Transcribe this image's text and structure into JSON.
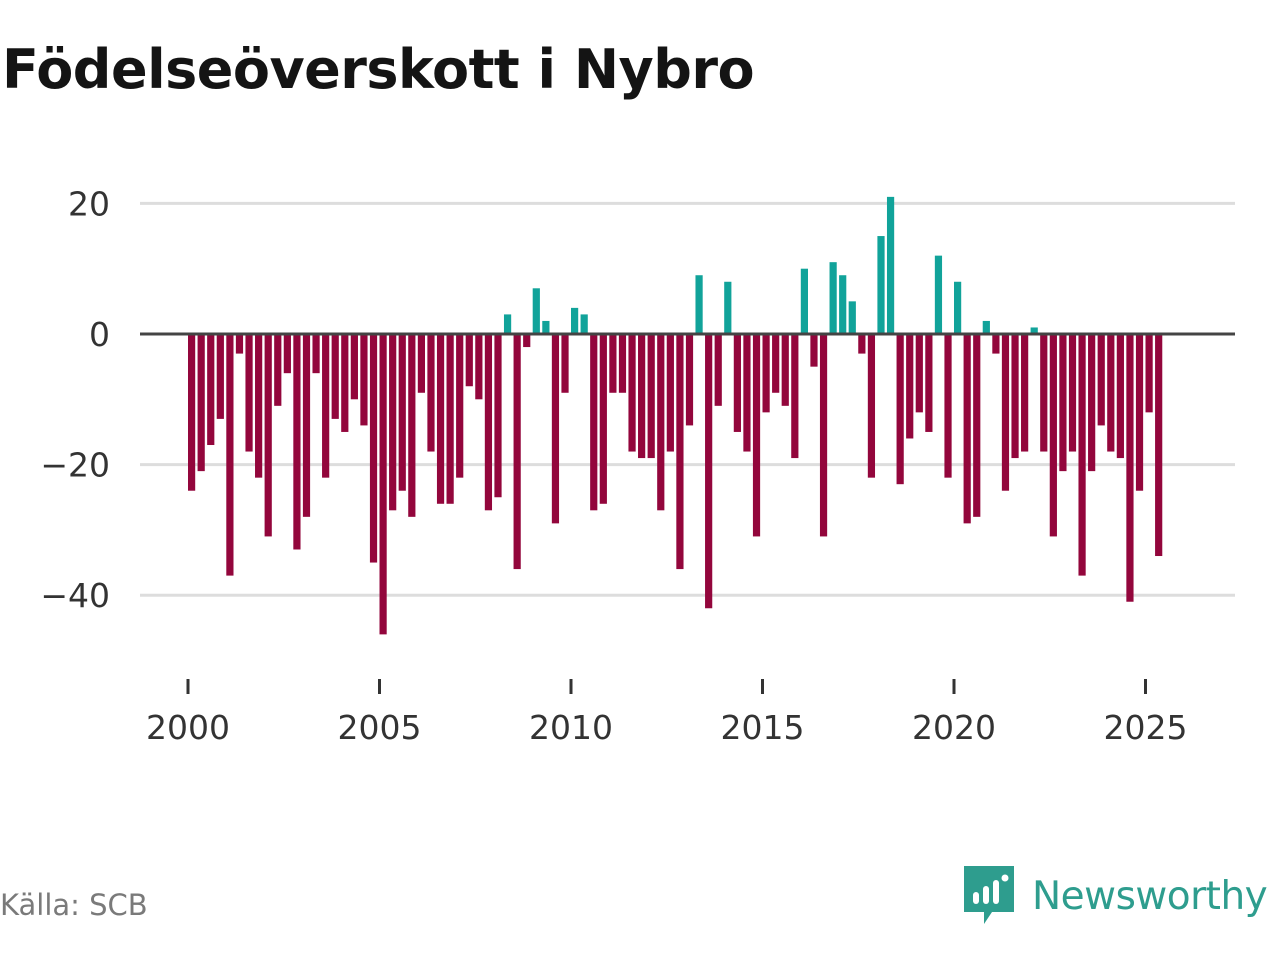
{
  "title": "Födelseöverskott i Nybro",
  "source": "Källa: SCB",
  "brand": {
    "name": "Newsworthy",
    "icon": "newsworthy-logo-icon",
    "color": "#2e9d8e"
  },
  "colors": {
    "positive": "#11a39a",
    "negative": "#93063c",
    "grid": "#dddddd",
    "zero": "#444444"
  },
  "chart_data": {
    "type": "bar",
    "title": "Födelseöverskott i Nybro",
    "xlabel": "",
    "ylabel": "",
    "frequency": "monthly",
    "x_ticks": [
      "2000",
      "2005",
      "2010",
      "2015",
      "2020",
      "2025"
    ],
    "y_ticks": [
      20,
      0,
      -20,
      -40
    ],
    "y_tick_labels": [
      "20",
      "0",
      "−20",
      "−40"
    ],
    "ylim": [
      -50,
      25
    ],
    "start": 2000.0,
    "step": 0.25,
    "values": [
      -24,
      -21,
      -17,
      -13,
      -37,
      -3,
      -18,
      -22,
      -31,
      -11,
      -6,
      -33,
      -28,
      -6,
      -22,
      -13,
      -15,
      -10,
      -14,
      -35,
      -46,
      -27,
      -24,
      -28,
      -9,
      -18,
      -26,
      -26,
      -22,
      -8,
      -10,
      -27,
      -25,
      3,
      -36,
      -2,
      7,
      2,
      -29,
      -9,
      4,
      3,
      -27,
      -26,
      -9,
      -9,
      -18,
      -19,
      -19,
      -27,
      -18,
      -36,
      -14,
      9,
      -42,
      -11,
      8,
      -15,
      -18,
      -31,
      -12,
      -9,
      -11,
      -19,
      10,
      -5,
      -31,
      11,
      9,
      5,
      -3,
      -22,
      15,
      21,
      -23,
      -16,
      -12,
      -15,
      12,
      -22,
      8,
      -29,
      -28,
      2,
      -3,
      -24,
      -19,
      -18,
      1,
      -18,
      -31,
      -21,
      -18,
      -37,
      -21,
      -14,
      -18,
      -19,
      -41,
      -24,
      -12,
      -34
    ]
  }
}
